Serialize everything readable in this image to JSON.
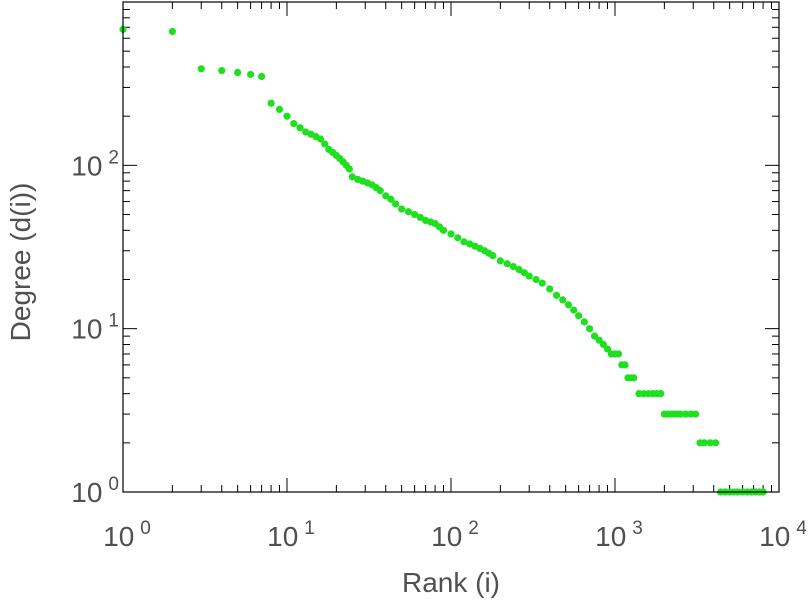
{
  "chart_data": {
    "type": "scatter",
    "title": "",
    "xlabel": "Rank (i)",
    "ylabel": "Degree (d(i))",
    "x_scale": "log",
    "y_scale": "log",
    "xlim": [
      1,
      10000
    ],
    "ylim": [
      1,
      1000
    ],
    "x_ticks": [
      {
        "base": "10",
        "exp": "0"
      },
      {
        "base": "10",
        "exp": "1"
      },
      {
        "base": "10",
        "exp": "2"
      },
      {
        "base": "10",
        "exp": "3"
      },
      {
        "base": "10",
        "exp": "4"
      }
    ],
    "y_ticks": [
      {
        "base": "10",
        "exp": "0"
      },
      {
        "base": "10",
        "exp": "1"
      },
      {
        "base": "10",
        "exp": "2"
      }
    ],
    "grid": false,
    "legend": "none",
    "marker_color": "#1ee01e",
    "series": [
      {
        "x": [
          1,
          2,
          3,
          4,
          5,
          6,
          7,
          8,
          9,
          10,
          11,
          12,
          13,
          14,
          15,
          16,
          17,
          18,
          19,
          20,
          21,
          22,
          23,
          24,
          25,
          27,
          29,
          31,
          33,
          35,
          37,
          40,
          43,
          46,
          50,
          55,
          60,
          65,
          70,
          75,
          80,
          85,
          90,
          100,
          110,
          120,
          130,
          140,
          150,
          160,
          170,
          180,
          200,
          220,
          240,
          260,
          280,
          300,
          330,
          360,
          400,
          440,
          480,
          520,
          560,
          600,
          650,
          700,
          750,
          800,
          850,
          900,
          950,
          1000,
          1050,
          1100,
          1150,
          1200,
          1250,
          1300,
          1400,
          1500,
          1600,
          1700,
          1800,
          1900,
          2000,
          2100,
          2200,
          2300,
          2400,
          2500,
          2700,
          2900,
          3100,
          3300,
          3500,
          3800,
          4100,
          4400,
          4700,
          5000,
          5300,
          5600,
          6000,
          6400,
          6800,
          7200,
          7600,
          8000
        ],
        "y": [
          680,
          660,
          390,
          380,
          370,
          360,
          350,
          240,
          220,
          200,
          180,
          170,
          160,
          155,
          150,
          145,
          135,
          125,
          120,
          115,
          110,
          105,
          100,
          95,
          85,
          82,
          80,
          78,
          76,
          73,
          70,
          65,
          62,
          58,
          54,
          52,
          50,
          48,
          46,
          45,
          44,
          42,
          40,
          38,
          36,
          34,
          33,
          32,
          31,
          30,
          29,
          28,
          26,
          25,
          24,
          23,
          22,
          21,
          20,
          19,
          17.5,
          16,
          15,
          14,
          13,
          12,
          11,
          10,
          9,
          8.5,
          8,
          7.5,
          7,
          7,
          7,
          6,
          6,
          5,
          5,
          5,
          4,
          4,
          4,
          4,
          4,
          4,
          3,
          3,
          3,
          3,
          3,
          3,
          3,
          3,
          3,
          2,
          2,
          2,
          2,
          1,
          1,
          1,
          1,
          1,
          1,
          1,
          1,
          1,
          1,
          1
        ]
      }
    ]
  }
}
